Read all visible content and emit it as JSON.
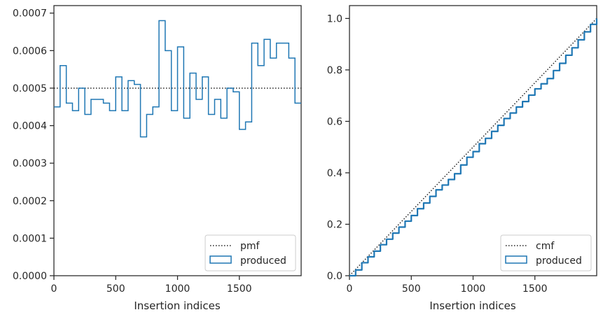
{
  "colors": {
    "produced": "#1f77b4",
    "reference": "#222222",
    "axes": "#262626"
  },
  "chart_data": [
    {
      "type": "histogram",
      "xlabel": "Insertion indices",
      "ylabel": "",
      "xlim": [
        0,
        2000
      ],
      "ylim": [
        0,
        0.00072
      ],
      "xticks": [
        0,
        500,
        1000,
        1500
      ],
      "xtick_labels": [
        "0",
        "500",
        "1000",
        "1500"
      ],
      "yticks": [
        0,
        0.0001,
        0.0002,
        0.0003,
        0.0004,
        0.0005,
        0.0006,
        0.0007
      ],
      "ytick_labels": [
        "0.0000",
        "0.0001",
        "0.0002",
        "0.0003",
        "0.0004",
        "0.0005",
        "0.0006",
        "0.0007"
      ],
      "grid": false,
      "legend_position": "bottom-right",
      "series": [
        {
          "name": "pmf",
          "kind": "reference-line",
          "style": "dotted",
          "value": 0.0005
        },
        {
          "name": "produced",
          "kind": "step-histogram",
          "bin_edges": [
            0,
            50,
            100,
            150,
            200,
            250,
            300,
            350,
            400,
            450,
            500,
            550,
            600,
            650,
            700,
            750,
            800,
            850,
            900,
            950,
            1000,
            1050,
            1100,
            1150,
            1200,
            1250,
            1300,
            1350,
            1400,
            1450,
            1500,
            1550,
            1600,
            1650,
            1700,
            1750,
            1800,
            1850,
            1900,
            1950,
            2000
          ],
          "values": [
            0.00045,
            0.00056,
            0.00046,
            0.00044,
            0.0005,
            0.00043,
            0.00047,
            0.00047,
            0.00046,
            0.00044,
            0.00053,
            0.00044,
            0.00052,
            0.00051,
            0.00037,
            0.00043,
            0.00045,
            0.00068,
            0.0006,
            0.00044,
            0.00061,
            0.00042,
            0.00054,
            0.00047,
            0.00053,
            0.00043,
            0.00047,
            0.00042,
            0.0005,
            0.00049,
            0.00039,
            0.00041,
            0.00062,
            0.00056,
            0.00063,
            0.00058,
            0.00062,
            0.00062,
            0.00058,
            0.00046
          ]
        }
      ]
    },
    {
      "type": "line",
      "xlabel": "Insertion indices",
      "ylabel": "",
      "xlim": [
        0,
        2000
      ],
      "ylim": [
        0,
        1.05
      ],
      "xticks": [
        0,
        500,
        1000,
        1500
      ],
      "xtick_labels": [
        "0",
        "500",
        "1000",
        "1500"
      ],
      "yticks": [
        0,
        0.2,
        0.4,
        0.6,
        0.8,
        1.0
      ],
      "ytick_labels": [
        "0.0",
        "0.2",
        "0.4",
        "0.6",
        "0.8",
        "1.0"
      ],
      "grid": false,
      "legend_position": "bottom-right",
      "series": [
        {
          "name": "cmf",
          "kind": "reference-line",
          "style": "dotted",
          "x": [
            0,
            2000
          ],
          "y": [
            0,
            1.0
          ]
        },
        {
          "name": "produced",
          "kind": "cumulative-step",
          "x": [
            0,
            50,
            100,
            150,
            200,
            250,
            300,
            350,
            400,
            450,
            500,
            550,
            600,
            650,
            700,
            750,
            800,
            850,
            900,
            950,
            1000,
            1050,
            1100,
            1150,
            1200,
            1250,
            1300,
            1350,
            1400,
            1450,
            1500,
            1550,
            1600,
            1650,
            1700,
            1750,
            1800,
            1850,
            1900,
            1950,
            2000
          ],
          "y": [
            0,
            0.0225,
            0.0505,
            0.0735,
            0.0955,
            0.1205,
            0.142,
            0.1655,
            0.189,
            0.212,
            0.234,
            0.2605,
            0.2825,
            0.3085,
            0.334,
            0.3525,
            0.374,
            0.3965,
            0.4305,
            0.4605,
            0.4825,
            0.513,
            0.534,
            0.561,
            0.5845,
            0.611,
            0.6325,
            0.656,
            0.677,
            0.702,
            0.7265,
            0.746,
            0.7665,
            0.7975,
            0.8255,
            0.857,
            0.886,
            0.917,
            0.948,
            0.977,
            1.0
          ]
        }
      ]
    }
  ],
  "legends": [
    {
      "items": [
        {
          "label": "pmf"
        },
        {
          "label": "produced"
        }
      ]
    },
    {
      "items": [
        {
          "label": "cmf"
        },
        {
          "label": "produced"
        }
      ]
    }
  ]
}
